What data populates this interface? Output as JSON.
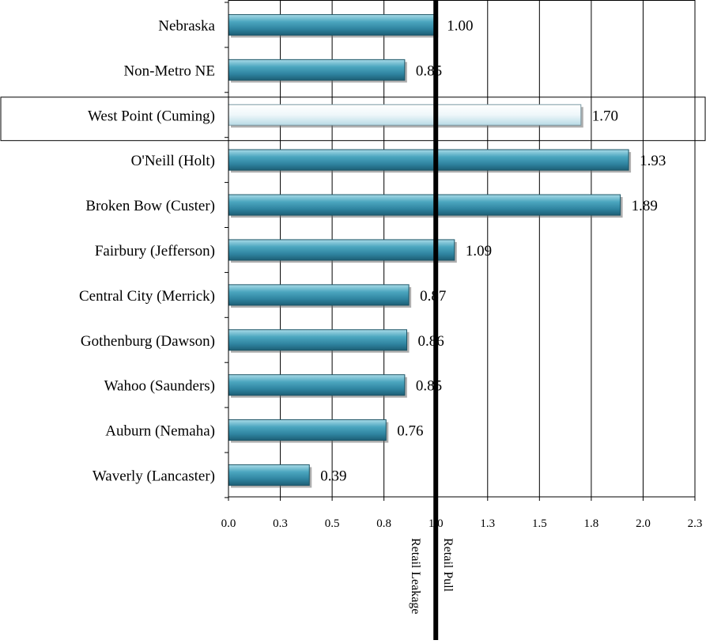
{
  "chart_data": {
    "type": "bar",
    "orientation": "horizontal",
    "categories": [
      "Nebraska",
      "Non-Metro NE",
      "West Point (Cuming)",
      "O'Neill (Holt)",
      "Broken Bow (Custer)",
      "Fairbury (Jefferson)",
      "Central City (Merrick)",
      "Gothenburg (Dawson)",
      "Wahoo (Saunders)",
      "Auburn (Nemaha)",
      "Waverly (Lancaster)"
    ],
    "values": [
      1.0,
      0.85,
      1.7,
      1.93,
      1.89,
      1.09,
      0.87,
      0.86,
      0.85,
      0.76,
      0.39
    ],
    "value_labels": [
      "1.00",
      "0.85",
      "1.70",
      "1.93",
      "1.89",
      "1.09",
      "0.87",
      "0.86",
      "0.85",
      "0.76",
      "0.39"
    ],
    "highlighted_category": "West Point (Cuming)",
    "x_ticks": [
      "0.0",
      "0.3",
      "0.5",
      "0.8",
      "1.0",
      "1.3",
      "1.5",
      "1.8",
      "2.0",
      "2.3"
    ],
    "xlim": [
      0,
      2.25
    ],
    "reference_line": 1.0,
    "annotations": {
      "left_of_reference": "Retail Leakage",
      "right_of_reference": "Retail Pull"
    },
    "grid": "vertical",
    "legend": "none",
    "colors": {
      "bar": "#3b94ad",
      "bar_highlight": "#f2f8fa",
      "reference_line": "#000000",
      "grid": "#000000"
    }
  }
}
